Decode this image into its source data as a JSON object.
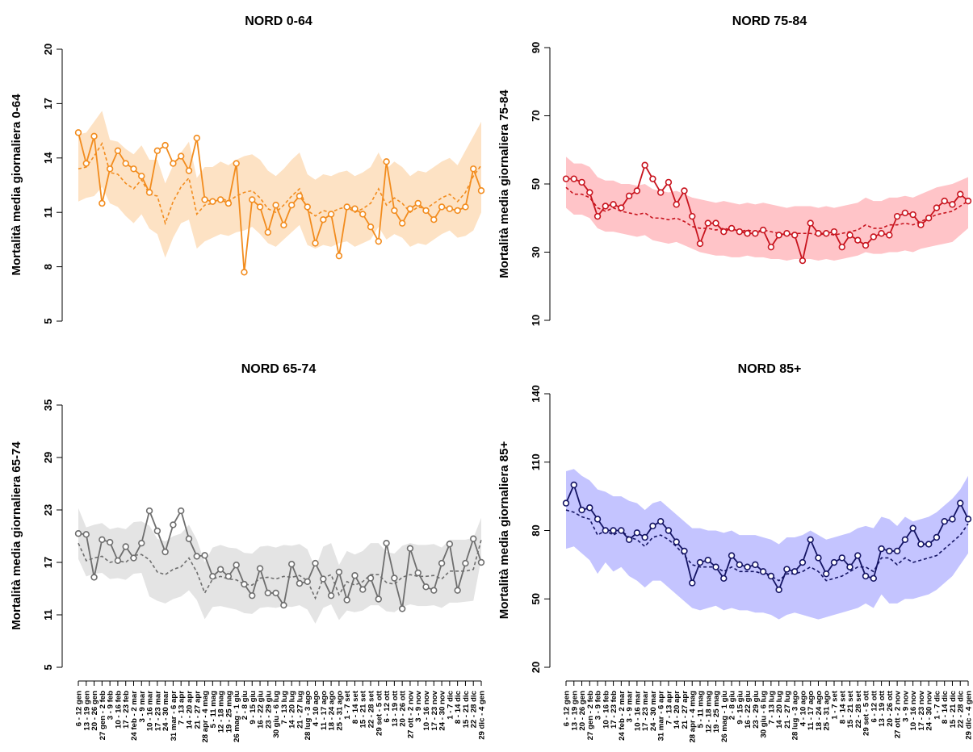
{
  "chart_data": [
    {
      "type": "line",
      "title": "NORD 0-64",
      "ylabel": "Mortalità media giornaliera 0-64",
      "ylim": [
        5,
        20
      ],
      "yticks": [
        5,
        8,
        11,
        14,
        17,
        20
      ],
      "color": "#f28c1e",
      "band_color": "#fde2c4",
      "observed": [
        15.4,
        13.7,
        15.2,
        11.5,
        13.4,
        14.4,
        13.7,
        13.4,
        13.0,
        12.1,
        14.4,
        14.7,
        13.7,
        14.1,
        13.3,
        15.1,
        11.7,
        11.6,
        11.7,
        11.5,
        13.7,
        7.7,
        11.7,
        11.3,
        9.9,
        11.4,
        10.3,
        11.4,
        11.9,
        11.3,
        9.3,
        10.6,
        10.9,
        8.6,
        11.3,
        11.2,
        10.9,
        10.2,
        9.4,
        13.8,
        11.1,
        10.4,
        11.2,
        11.5,
        11.1,
        10.6,
        11.3,
        11.2,
        11.1,
        11.3,
        13.4,
        12.2
      ],
      "expected": [
        13.4,
        13.5,
        14.1,
        14.8,
        13.2,
        13.1,
        12.6,
        12.3,
        12.8,
        12.0,
        11.9,
        10.4,
        11.6,
        12.4,
        12.9,
        10.9,
        11.4,
        11.5,
        11.8,
        11.6,
        11.9,
        12.1,
        12.2,
        11.8,
        11.2,
        11.0,
        11.4,
        11.9,
        12.3,
        11.1,
        10.8,
        11.1,
        11.0,
        11.2,
        11.3,
        11.0,
        11.2,
        11.5,
        12.3,
        11.4,
        11.8,
        11.5,
        11.0,
        11.3,
        11.2,
        11.5,
        11.8,
        12.0,
        11.6,
        12.1,
        13.0,
        13.6
      ],
      "lower": [
        11.6,
        11.8,
        11.9,
        12.4,
        11.5,
        11.3,
        10.8,
        10.4,
        10.9,
        10.1,
        9.8,
        8.5,
        9.6,
        10.4,
        10.6,
        9.0,
        9.4,
        9.6,
        9.8,
        9.7,
        9.9,
        10.0,
        10.2,
        9.8,
        9.3,
        9.1,
        9.5,
        9.9,
        10.3,
        9.2,
        9.0,
        9.2,
        9.1,
        9.3,
        9.4,
        9.1,
        9.3,
        9.5,
        10.2,
        9.5,
        9.8,
        9.6,
        9.1,
        9.3,
        9.2,
        9.5,
        9.8,
        10.0,
        9.6,
        9.7,
        10.0,
        11.0
      ],
      "upper": [
        15.3,
        15.4,
        16.0,
        16.6,
        15.0,
        14.9,
        14.5,
        14.2,
        14.7,
        13.9,
        13.9,
        12.6,
        13.6,
        14.3,
        14.9,
        12.9,
        13.5,
        13.5,
        13.8,
        13.6,
        13.9,
        14.1,
        14.2,
        13.9,
        13.3,
        13.0,
        13.4,
        13.9,
        14.3,
        13.1,
        12.8,
        13.1,
        13.0,
        13.2,
        13.3,
        13.0,
        13.2,
        13.5,
        14.3,
        13.4,
        13.8,
        13.5,
        13.0,
        13.3,
        13.2,
        13.5,
        13.8,
        14.0,
        13.6,
        14.4,
        15.2,
        16.0
      ]
    },
    {
      "type": "line",
      "title": "NORD 75-84",
      "ylabel": "Mortalità media giornaliera 75-84",
      "ylim": [
        10,
        90
      ],
      "yticks": [
        10,
        30,
        50,
        70,
        90
      ],
      "color": "#c8141e",
      "band_color": "#ffc4c8",
      "observed": [
        51.5,
        51.5,
        50.5,
        47.5,
        40.5,
        43.5,
        44,
        43,
        46.5,
        48,
        55.5,
        51.5,
        47.5,
        50.5,
        44,
        48,
        40.5,
        32.5,
        38.5,
        38.5,
        36,
        37,
        36,
        35.5,
        35.5,
        36.5,
        31.5,
        35,
        35.5,
        35,
        27.5,
        38.5,
        35.5,
        35.5,
        36,
        31.5,
        35,
        33.5,
        32,
        34.5,
        35.5,
        35,
        40.5,
        41.5,
        41,
        38,
        40,
        43,
        45,
        44,
        47,
        45
      ],
      "expected": [
        49,
        47,
        47,
        46,
        43,
        42,
        43,
        42,
        41.5,
        41,
        41.5,
        40,
        40,
        39.5,
        40,
        39,
        37.5,
        37,
        37,
        36.5,
        37,
        36.5,
        36,
        36.5,
        36,
        36.5,
        36,
        35.5,
        35,
        35.5,
        35.5,
        35.5,
        35,
        35.5,
        35,
        35.5,
        36,
        36.5,
        38,
        37,
        37,
        38,
        38,
        38.5,
        38,
        39,
        40,
        41,
        41.5,
        42,
        43.5,
        45
      ],
      "lower": [
        43,
        41,
        41,
        40,
        37,
        36,
        36,
        35.5,
        35,
        34.5,
        35,
        33.5,
        33,
        32.5,
        33,
        32,
        31,
        30,
        29.5,
        29,
        29,
        28.5,
        28.5,
        29,
        28.5,
        28.5,
        28,
        28,
        27.5,
        28,
        28,
        28,
        27.5,
        28,
        27.5,
        28,
        28.5,
        29,
        30,
        29.5,
        29.5,
        30,
        30,
        30.5,
        30,
        31,
        31.5,
        32,
        32.5,
        33,
        35,
        37
      ],
      "upper": [
        58,
        56,
        56,
        55,
        52,
        51,
        51,
        50,
        50,
        49.5,
        50,
        48.5,
        48,
        47.5,
        48,
        47,
        46,
        45.5,
        45,
        44.5,
        45,
        44.5,
        44,
        44.5,
        44,
        44.5,
        44,
        43.5,
        43,
        43.5,
        43.5,
        43.5,
        43,
        43.5,
        43,
        43.5,
        44,
        44.5,
        46,
        45,
        45,
        46,
        46,
        46.5,
        46,
        47,
        48,
        49,
        49.5,
        50,
        51,
        52
      ]
    },
    {
      "type": "line",
      "title": "NORD 65-74",
      "ylabel": "Mortalità media giornaliera 65-74",
      "ylim": [
        5,
        35
      ],
      "yticks": [
        5,
        11,
        17,
        23,
        29,
        35
      ],
      "color": "#6e6e6e",
      "band_color": "#e4e4e4",
      "observed": [
        20.3,
        20.2,
        15.3,
        19.6,
        19.3,
        17.2,
        18.8,
        17.5,
        19.2,
        22.9,
        20.6,
        18.2,
        21.3,
        22.9,
        19.7,
        17.7,
        17.8,
        15.4,
        16.2,
        15.4,
        16.7,
        14.5,
        13.2,
        16.3,
        13.5,
        13.5,
        12.1,
        16.8,
        14.6,
        14.8,
        16.9,
        15.1,
        13.2,
        15.9,
        12.7,
        15.5,
        13.9,
        15.2,
        12.8,
        19.2,
        15.2,
        11.7,
        18.6,
        15.8,
        14.2,
        13.8,
        16.9,
        19.1,
        13.8,
        16.9,
        19.7,
        17.0
      ],
      "expected": [
        19.2,
        17.2,
        17.5,
        17.7,
        17.0,
        17.2,
        17.0,
        17.8,
        17.9,
        17.3,
        15.9,
        15.6,
        16.2,
        16.5,
        17.5,
        15.9,
        13.5,
        15.1,
        15.4,
        15.1,
        15.0,
        14.5,
        14.4,
        15.2,
        15.3,
        15.1,
        15.4,
        15.3,
        15.5,
        14.9,
        12.9,
        15.2,
        15.6,
        13.3,
        14.8,
        14.4,
        14.8,
        15.6,
        15.6,
        14.7,
        14.5,
        15.3,
        15.6,
        15.4,
        15.4,
        15.5,
        15.1,
        16.0,
        16.0,
        16.0,
        16.2,
        19.6
      ],
      "lower": [
        17.4,
        15.4,
        15.7,
        15.8,
        15.1,
        15.2,
        15.0,
        15.7,
        15.8,
        13.1,
        12.6,
        12.3,
        12.8,
        13.1,
        13.8,
        12.7,
        10.5,
        11.9,
        12.0,
        11.8,
        11.6,
        11.2,
        11.1,
        11.8,
        11.9,
        11.8,
        12.0,
        11.9,
        12.1,
        11.6,
        10.0,
        11.8,
        12.2,
        10.4,
        11.5,
        11.3,
        11.5,
        12.1,
        12.1,
        11.4,
        11.3,
        11.9,
        12.2,
        12.0,
        12.0,
        12.1,
        11.8,
        12.4,
        12.4,
        12.5,
        12.6,
        17.4
      ],
      "upper": [
        23.2,
        21.0,
        21.3,
        21.5,
        20.8,
        21.0,
        20.8,
        21.6,
        21.7,
        21.2,
        19.7,
        19.4,
        20.0,
        20.3,
        21.3,
        19.6,
        17.0,
        18.7,
        19.0,
        18.7,
        18.6,
        18.1,
        18.0,
        18.8,
        18.9,
        18.7,
        19.0,
        18.9,
        19.1,
        18.5,
        16.3,
        18.8,
        19.2,
        16.7,
        18.3,
        17.9,
        18.3,
        19.2,
        19.2,
        18.2,
        18.0,
        18.9,
        19.2,
        19.0,
        19.0,
        19.1,
        18.7,
        19.6,
        19.6,
        19.6,
        19.8,
        22.1
      ]
    },
    {
      "type": "line",
      "title": "NORD 85+",
      "ylabel": "Mortalità media giornaliera 85+",
      "ylim": [
        20,
        140
      ],
      "yticks": [
        20,
        50,
        80,
        110,
        140
      ],
      "color": "#141464",
      "band_color": "#c4c4ff",
      "observed": [
        92,
        100,
        89,
        90,
        85,
        80,
        80,
        80,
        76,
        79,
        77,
        82,
        84,
        80,
        75,
        71,
        57,
        66,
        67,
        64,
        59,
        69,
        65,
        64,
        65,
        62,
        60,
        54,
        63,
        62,
        66,
        76,
        68,
        61,
        66,
        68,
        64,
        69,
        60,
        59,
        72,
        71,
        71,
        76,
        81,
        74,
        74,
        77,
        84,
        85,
        92,
        85
      ],
      "expected": [
        89,
        88,
        86,
        85,
        78,
        80,
        78,
        80,
        77,
        76,
        73,
        77,
        78,
        76,
        73,
        69,
        65,
        64,
        64,
        64,
        62,
        64,
        62,
        62,
        62,
        61,
        60,
        58,
        61,
        61,
        62,
        64,
        62,
        58,
        59,
        60,
        62,
        64,
        64,
        62,
        68,
        68,
        65,
        68,
        66,
        67,
        68,
        69,
        72,
        75,
        78,
        83
      ],
      "lower": [
        72,
        73,
        70,
        67,
        61,
        66,
        62,
        64,
        60,
        58,
        55,
        58,
        58,
        55,
        52,
        49,
        46,
        45,
        46,
        47,
        45,
        46,
        45,
        45,
        44,
        44,
        43,
        41,
        43,
        44,
        43,
        42,
        41,
        42,
        43,
        44,
        45,
        46,
        48,
        46,
        52,
        48,
        48,
        50,
        50,
        51,
        52,
        54,
        57,
        60,
        65,
        70
      ],
      "upper": [
        106,
        107,
        104,
        102,
        98,
        97,
        95,
        95,
        93,
        92,
        89,
        92,
        93,
        90,
        87,
        84,
        81,
        81,
        80,
        80,
        79,
        80,
        78,
        78,
        78,
        77,
        76,
        74,
        77,
        77,
        78,
        80,
        78,
        76,
        77,
        78,
        79,
        81,
        82,
        81,
        86,
        85,
        82,
        86,
        84,
        85,
        86,
        88,
        91,
        94,
        98,
        104
      ]
    }
  ],
  "x_labels": [
    "6 - 12 gen",
    "13 - 19 gen",
    "20 - 26 gen",
    "27 gen - 2 feb",
    "3 - 9 feb",
    "10 - 16 feb",
    "17 - 23 feb",
    "24 feb - 2 mar",
    "3 - 9 mar",
    "10 - 16 mar",
    "17 - 23 mar",
    "24 - 30 mar",
    "31 mar - 6 apr",
    "7 - 13 apr",
    "14 - 20 apr",
    "21 - 27 apr",
    "28 apr - 4 mag",
    "5 - 11 mag",
    "12 - 18 mag",
    "19 - 25 mag",
    "26 mag - 1 giu",
    "2 - 8 giu",
    "9 - 15 giu",
    "16 - 22 giu",
    "23 - 29 giu",
    "30 giu - 6 lug",
    "7 - 13 lug",
    "14 - 20 lug",
    "21 - 27 lug",
    "28 lug - 3 ago",
    "4 - 10 ago",
    "11 - 17 ago",
    "18 - 24 ago",
    "25 - 31 ago",
    "1 - 7 set",
    "8 - 14 set",
    "15 - 21 set",
    "22 - 28 set",
    "29 set - 5 ott",
    "6 - 12 ott",
    "13 - 19 ott",
    "20 - 26 ott",
    "27 ott - 2 nov",
    "3 - 9 nov",
    "10 - 16 nov",
    "17 - 23 nov",
    "24 - 30 nov",
    "1 - 7 dic",
    "8 - 14 dic",
    "15 - 21 dic",
    "22 - 28 dic",
    "29 dic - 4 gen"
  ]
}
